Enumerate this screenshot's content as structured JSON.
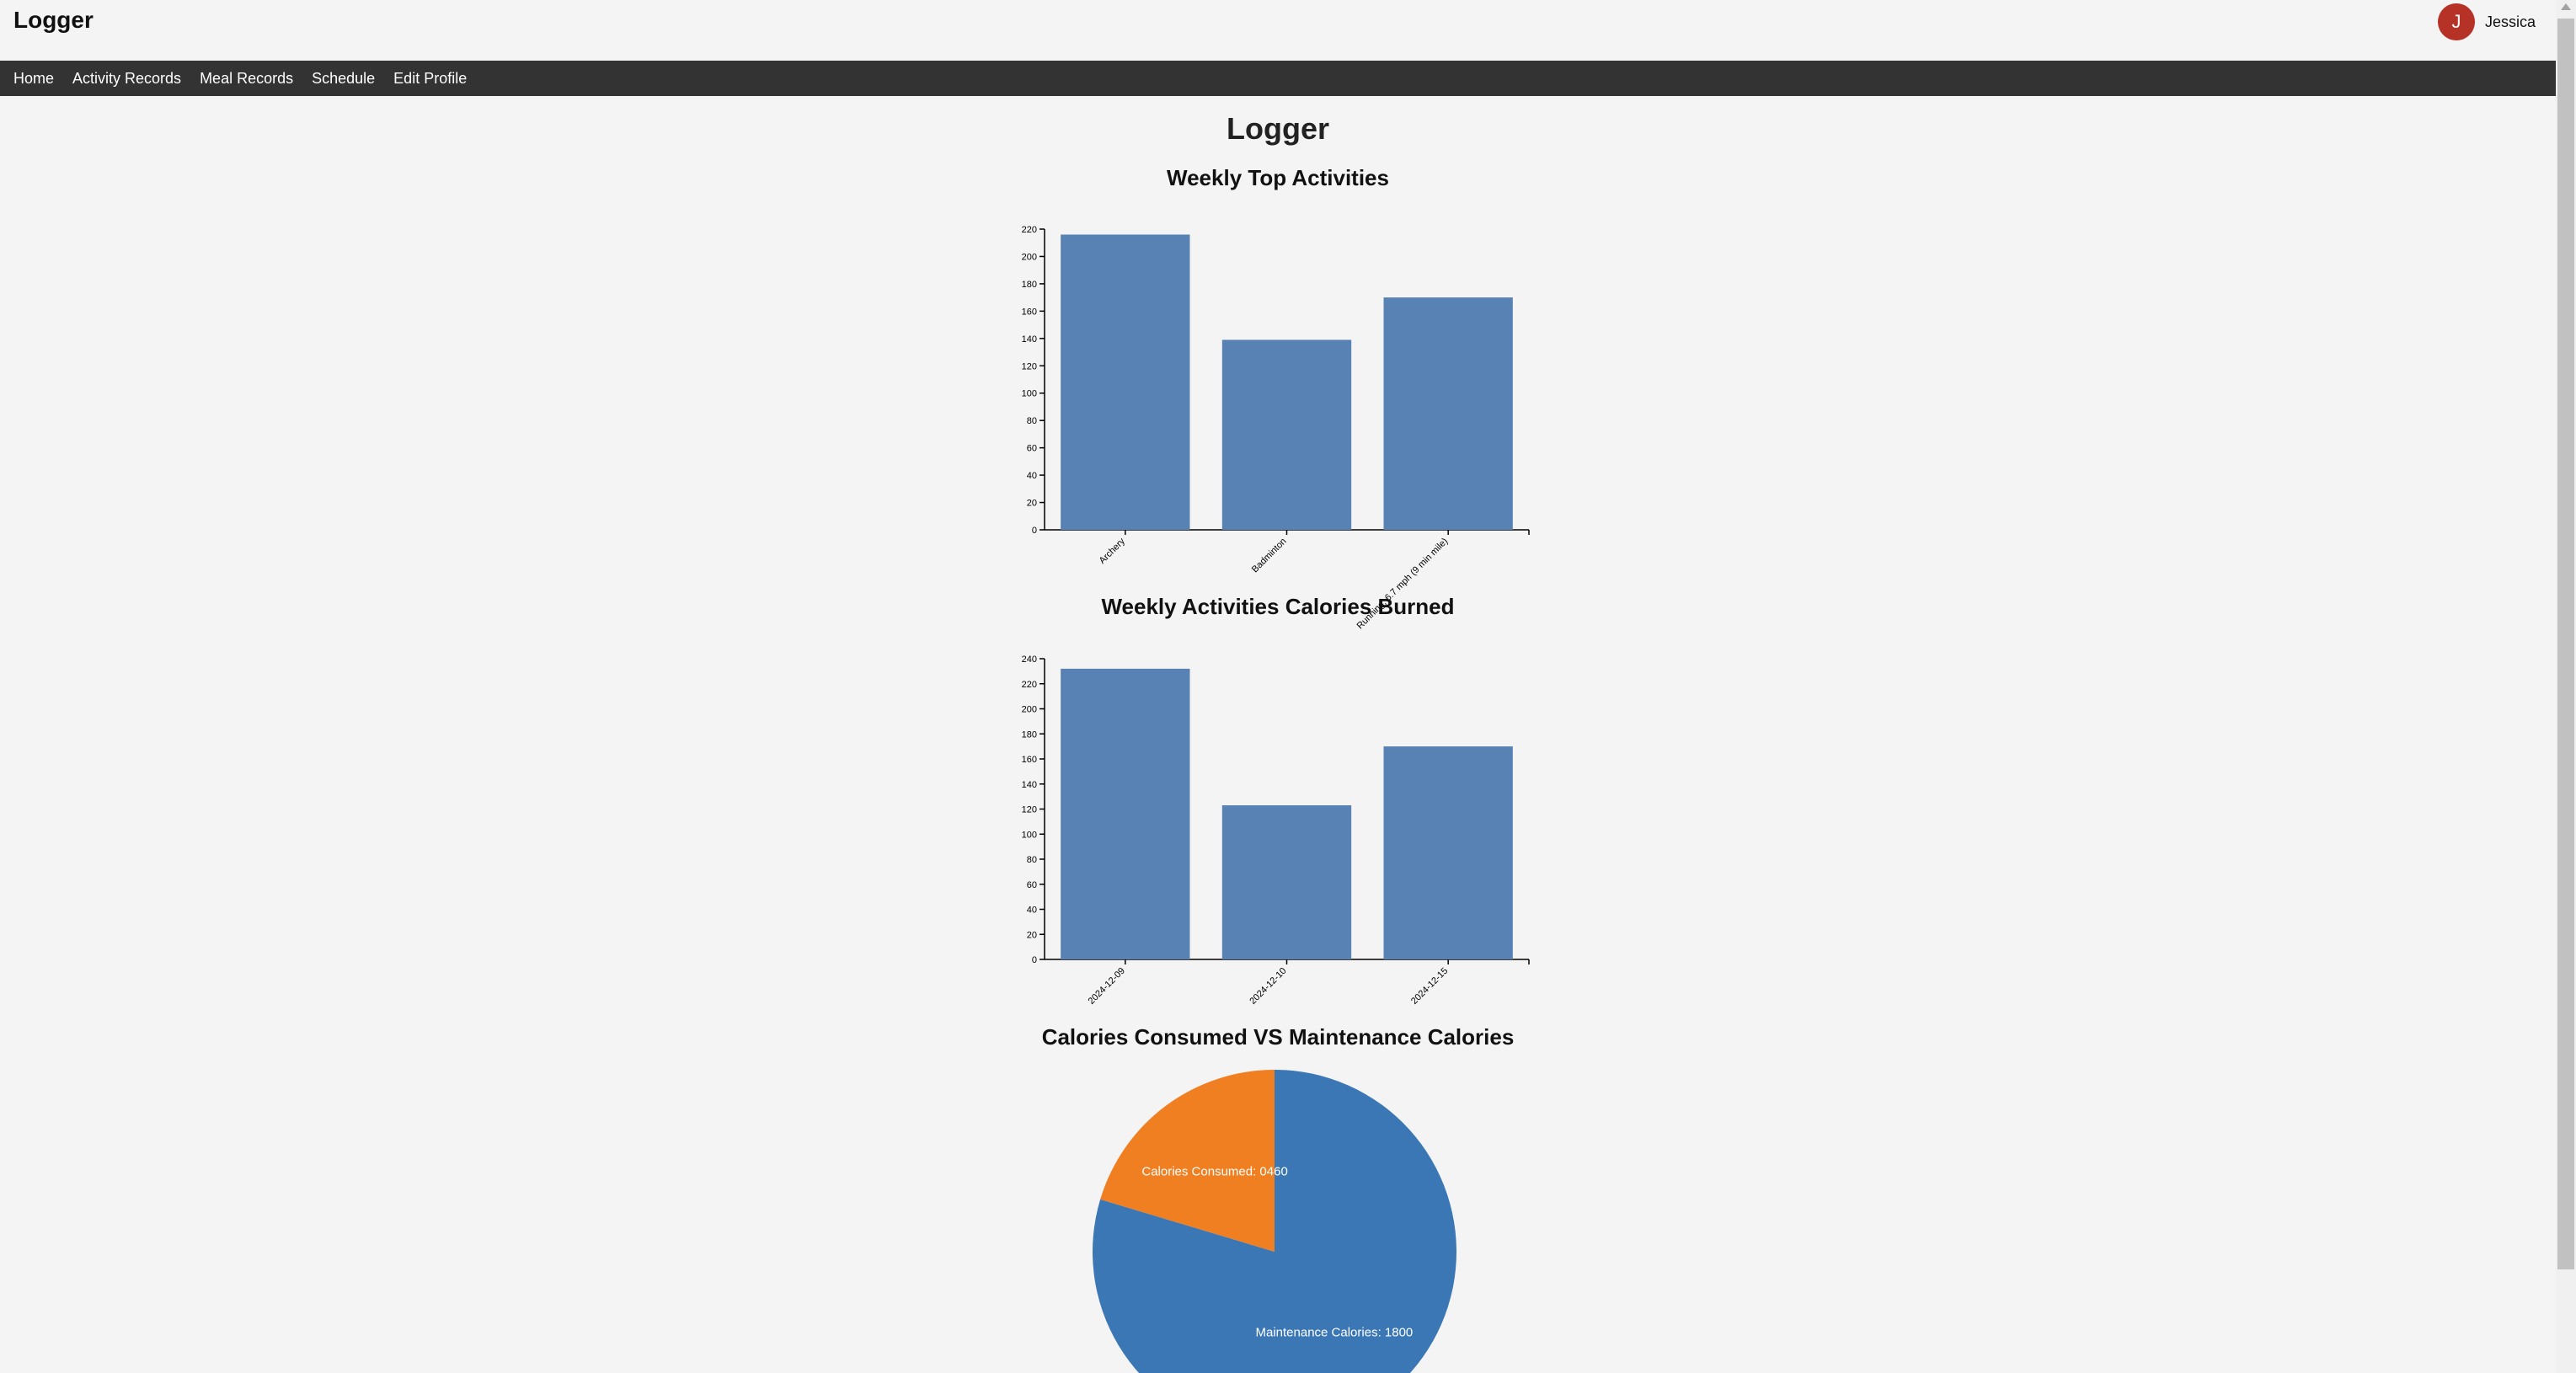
{
  "app": {
    "title": "Logger",
    "user": {
      "initial": "J",
      "name": "Jessica",
      "avatar_color": "#b73226"
    }
  },
  "nav": {
    "items": [
      {
        "label": "Home"
      },
      {
        "label": "Activity Records"
      },
      {
        "label": "Meal Records"
      },
      {
        "label": "Schedule"
      },
      {
        "label": "Edit Profile"
      }
    ]
  },
  "main": {
    "title": "Logger"
  },
  "chart_data": [
    {
      "type": "bar",
      "title": "Weekly Top Activities",
      "categories": [
        "Archery",
        "Badminton",
        "Running, 6.7 mph (9 min mile)"
      ],
      "values": [
        216,
        139,
        170
      ],
      "ylim": [
        0,
        220
      ],
      "yticks": [
        0,
        20,
        40,
        60,
        80,
        100,
        120,
        140,
        160,
        180,
        200,
        220
      ],
      "color": "#5782b3"
    },
    {
      "type": "bar",
      "title": "Weekly Activities Calories Burned",
      "categories": [
        "2024-12-09",
        "2024-12-10",
        "2024-12-15"
      ],
      "values": [
        232,
        123,
        170
      ],
      "ylim": [
        0,
        240
      ],
      "yticks": [
        0,
        20,
        40,
        60,
        80,
        100,
        120,
        140,
        160,
        180,
        200,
        220,
        240
      ],
      "color": "#5782b3"
    },
    {
      "type": "pie",
      "title": "Calories Consumed VS Maintenance Calories",
      "slices": [
        {
          "label": "Maintenance Calories: 1800",
          "value": 1800,
          "color": "#3a77b4"
        },
        {
          "label": "Calories Consumed: 0460",
          "value": 460,
          "color": "#f07f22"
        }
      ]
    }
  ]
}
